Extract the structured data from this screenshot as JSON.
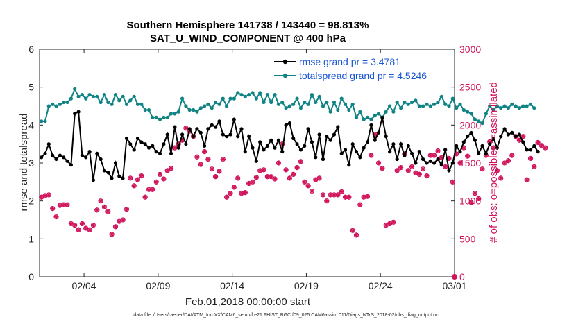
{
  "chart_data": {
    "type": "line",
    "title": "Southern Hemisphere 141738 / 143440 = 98.813%",
    "subtitle": "SAT_U_WIND_COMPONENT @ 400 hPa",
    "xlabel": "Feb.01,2018 00:00:00 start",
    "ylabel": "rmse and totalspread",
    "ylabel_right": "# of obs: o=possible; *=assimilated",
    "footer": "data file: /Users/raeder/DAI/ATM_forcXX/CAM6_setup/f.e21.FHIST_BGC.f09_025.CAM6assim.011/Diags_NTrS_2018-02/obs_diag_output.nc",
    "xlim": [
      1,
      29
    ],
    "ylim": [
      0,
      6
    ],
    "ylim_right": [
      0,
      3000
    ],
    "yticks": [
      "0",
      "1",
      "2",
      "3",
      "4",
      "5",
      "6"
    ],
    "yticks_right": [
      "0",
      "500",
      "1000",
      "1500",
      "2000",
      "2500",
      "3000"
    ],
    "xticks": [
      {
        "value": 4,
        "label": "02/04"
      },
      {
        "value": 9,
        "label": "02/09"
      },
      {
        "value": 14,
        "label": "02/14"
      },
      {
        "value": 19,
        "label": "02/19"
      },
      {
        "value": 24,
        "label": "02/24"
      },
      {
        "value": 29,
        "label": "03/01"
      }
    ],
    "x_start": 1.125,
    "x_step": 0.25,
    "legend_position": "top-right",
    "series": [
      {
        "name": "rmse grand pr = 3.4781",
        "color": "#000000",
        "axis": "left",
        "values": [
          3.15,
          3.25,
          3.5,
          3.2,
          3.1,
          3.2,
          3.15,
          3.05,
          2.95,
          4.3,
          4.35,
          3.2,
          3.15,
          3.3,
          2.55,
          3.25,
          3.1,
          2.8,
          2.75,
          2.6,
          3.0,
          2.65,
          2.6,
          3.65,
          3.5,
          3.35,
          3.65,
          3.55,
          3.5,
          3.4,
          3.45,
          3.3,
          3.25,
          3.5,
          3.75,
          3.25,
          3.95,
          3.4,
          3.75,
          3.5,
          3.9,
          3.7,
          3.9,
          3.8,
          3.45,
          3.9,
          4.0,
          3.95,
          4.1,
          3.75,
          3.7,
          3.75,
          4.15,
          3.7,
          3.9,
          3.3,
          3.7,
          3.4,
          3.05,
          3.55,
          3.35,
          3.45,
          3.6,
          3.4,
          3.6,
          3.3,
          4.0,
          4.05,
          3.65,
          3.5,
          3.35,
          3.45,
          3.9,
          3.55,
          3.15,
          3.75,
          3.1,
          3.7,
          3.6,
          3.75,
          3.95,
          3.25,
          3.35,
          2.95,
          3.5,
          3.3,
          3.15,
          3.4,
          3.55,
          4.0,
          3.6,
          3.8,
          4.2,
          3.7,
          3.3,
          3.5,
          3.1,
          3.5,
          3.2,
          3.45,
          3.25,
          3.0,
          3.3,
          3.1,
          3.0,
          3.05,
          3.0,
          3.1,
          2.95,
          3.35,
          2.8,
          3.0,
          3.45,
          3.3,
          3.55,
          3.7,
          3.8,
          3.6,
          3.25,
          3.45,
          3.25,
          3.5,
          3.65,
          3.4,
          3.7,
          3.9,
          3.75,
          3.8,
          3.7,
          3.75,
          3.55,
          3.35,
          3.35,
          3.45,
          3.3
        ]
      },
      {
        "name": "totalspread grand pr = 4.5246",
        "color": "#108484",
        "axis": "left",
        "values": [
          4.1,
          4.1,
          4.5,
          4.55,
          4.5,
          4.55,
          4.6,
          4.6,
          4.7,
          4.95,
          4.75,
          4.8,
          4.7,
          4.8,
          4.75,
          4.75,
          4.6,
          4.8,
          4.6,
          4.55,
          4.8,
          4.65,
          4.75,
          4.55,
          4.65,
          4.75,
          4.55,
          4.55,
          4.4,
          4.4,
          4.2,
          4.2,
          4.15,
          4.2,
          4.2,
          4.3,
          4.3,
          4.35,
          4.7,
          4.5,
          4.4,
          4.4,
          4.35,
          4.45,
          4.5,
          4.55,
          4.45,
          4.6,
          4.55,
          4.7,
          4.5,
          4.7,
          4.7,
          4.85,
          4.8,
          4.75,
          4.8,
          4.85,
          4.7,
          4.85,
          4.6,
          4.8,
          4.6,
          4.8,
          4.55,
          4.6,
          4.45,
          4.5,
          4.55,
          4.7,
          4.45,
          4.6,
          4.55,
          4.8,
          4.6,
          4.75,
          4.5,
          4.6,
          4.35,
          4.6,
          4.4,
          4.7,
          4.55,
          4.4,
          4.55,
          4.2,
          4.35,
          4.15,
          4.2,
          4.15,
          4.25,
          4.3,
          4.2,
          4.35,
          4.5,
          4.35,
          4.6,
          4.45,
          4.6,
          4.55,
          4.6,
          4.65,
          4.5,
          4.5,
          4.55,
          4.5,
          4.55,
          4.6,
          4.75,
          4.55,
          4.5,
          4.7,
          4.45,
          4.55,
          4.4,
          4.35,
          4.3,
          4.15,
          4.1,
          4.05,
          4.3,
          4.5,
          4.4,
          4.5,
          4.45,
          4.5,
          4.45,
          4.55,
          4.5,
          4.45,
          4.5,
          4.5,
          4.55,
          4.45
        ]
      },
      {
        "name": "assimilated observations",
        "color": "#d0135b",
        "axis": "right",
        "values": [
          1050,
          1070,
          1080,
          900,
          790,
          940,
          950,
          950,
          700,
          680,
          620,
          700,
          640,
          620,
          680,
          880,
          1000,
          920,
          860,
          560,
          660,
          730,
          750,
          890,
          1300,
          1200,
          1280,
          1330,
          1050,
          1150,
          1150,
          1250,
          1350,
          1290,
          1400,
          1430,
          1700,
          1750,
          1800,
          1960,
          1920,
          1850,
          1580,
          1480,
          1650,
          1550,
          1420,
          1320,
          1390,
          1550,
          1050,
          1100,
          1180,
          1300,
          1100,
          1110,
          1230,
          1250,
          1310,
          1400,
          1410,
          1320,
          1320,
          1290,
          1500,
          1750,
          1410,
          1300,
          1350,
          1440,
          1520,
          1250,
          1200,
          1130,
          1280,
          1300,
          1080,
          1000,
          1080,
          1080,
          1080,
          1120,
          1050,
          1050,
          610,
          550,
          950,
          1050,
          1060,
          1600,
          1880,
          1500,
          1430,
          680,
          700,
          720,
          1400,
          1440,
          1620,
          1400,
          1450,
          1370,
          1350,
          1420,
          1330,
          1600,
          1600,
          1660,
          1570,
          1450,
          1560,
          1250,
          1620,
          1500,
          1700,
          1590,
          980,
          1100,
          1030,
          1420,
          1600,
          1780,
          1700,
          1400,
          1300,
          1500,
          1530,
          1600,
          1850,
          1800,
          1850,
          1280,
          1560,
          1450,
          1770,
          1730,
          1700
        ]
      }
    ]
  }
}
